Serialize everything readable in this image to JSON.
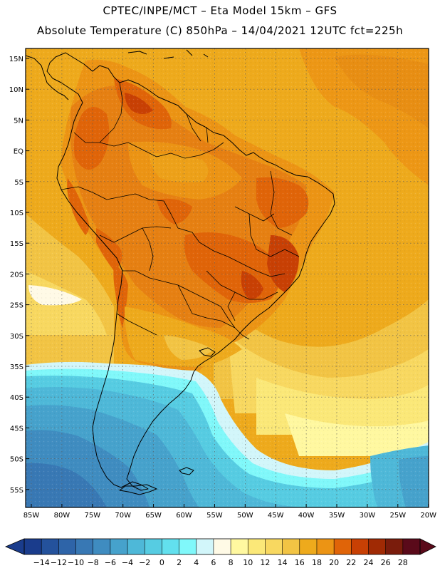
{
  "header": {
    "line1": "CPTEC/INPE/MCT –  Eta Model 15km – GFS",
    "line2": "Absolute Temperature (C) 850hPa – 14/04/2021 12UTC fct=225h"
  },
  "axes": {
    "lat_labels": [
      "15N",
      "10N",
      "5N",
      "EQ",
      "5S",
      "10S",
      "15S",
      "20S",
      "25S",
      "30S",
      "35S",
      "40S",
      "45S",
      "50S",
      "55S"
    ],
    "lon_labels": [
      "85W",
      "80W",
      "75W",
      "70W",
      "65W",
      "60W",
      "55W",
      "50W",
      "45W",
      "40W",
      "35W",
      "30W",
      "25W",
      "20W"
    ]
  },
  "colorbar": {
    "labels": [
      "-14",
      "-12",
      "-10",
      "-8",
      "-6",
      "-4",
      "-2",
      "0",
      "2",
      "4",
      "6",
      "8",
      "10",
      "12",
      "14",
      "16",
      "18",
      "20",
      "22",
      "24",
      "26",
      "28"
    ],
    "colors": [
      "#1a3c8c",
      "#24529c",
      "#2e64a8",
      "#3878b4",
      "#3f8cc0",
      "#46a2cc",
      "#4eb8d8",
      "#56cce2",
      "#62e0ee",
      "#80f8fa",
      "#d2f6fa",
      "#fffae6",
      "#fff8a0",
      "#fbe878",
      "#f8d860",
      "#f2c444",
      "#eeaa1c",
      "#ec9414",
      "#e06408",
      "#c84004",
      "#a02a04",
      "#7a1c0c",
      "#5a0a1a"
    ]
  }
}
